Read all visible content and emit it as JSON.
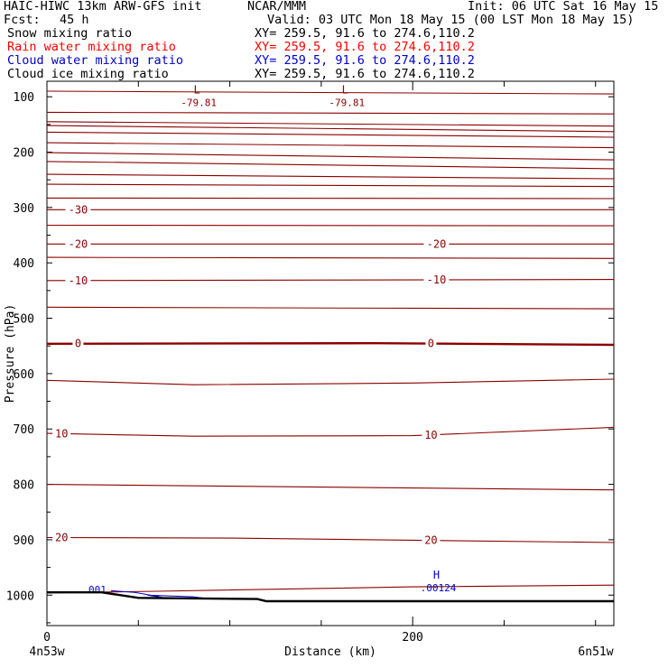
{
  "header": {
    "title": "HAIC-HIWC 13km ARW-GFS init",
    "org": "NCAR/MMM",
    "init": "Init: 06 UTC Sat 16 May 15",
    "fcst_label": "Fcst:",
    "fcst_value": "45 h",
    "valid": "Valid: 03 UTC Mon 18 May 15 (00 LST Mon 18 May 15)",
    "fields": [
      {
        "name": "Snow mixing ratio",
        "xy": "XY= 259.5, 91.6 to 274.6,110.2",
        "color": "#000000"
      },
      {
        "name": "Rain water mixing ratio",
        "xy": "XY= 259.5, 91.6 to 274.6,110.2",
        "color": "#ff0000"
      },
      {
        "name": "Cloud water mixing ratio",
        "xy": "XY= 259.5, 91.6 to 274.6,110.2",
        "color": "#0000cc"
      },
      {
        "name": "Cloud ice mixing ratio",
        "xy": "XY= 259.5, 91.6 to 274.6,110.2",
        "color": "#000000"
      }
    ]
  },
  "chart_data": {
    "type": "line",
    "xlabel": "Distance (km)",
    "ylabel": "Pressure (hPa)",
    "xlim": [
      0,
      310
    ],
    "ylim": [
      1055,
      72
    ],
    "x_ticks": [
      0,
      200
    ],
    "y_ticks": [
      100,
      200,
      300,
      400,
      500,
      600,
      700,
      800,
      900,
      1000
    ],
    "x_endpoint_labels": [
      "4n53w",
      "6n51w"
    ],
    "colors": {
      "temperature": "#8b0000",
      "cloud_water": "#0000cc",
      "terrain": "#000000"
    },
    "temperature_lines": [
      {
        "label": "0",
        "bold": true,
        "points": [
          [
            0,
            546
          ],
          [
            180,
            545
          ],
          [
            310,
            548
          ]
        ],
        "label_x": [
          17,
          210
        ]
      },
      {
        "label": "-10",
        "points": [
          [
            0,
            432
          ],
          [
            160,
            431
          ],
          [
            310,
            430
          ]
        ],
        "label_x": [
          17,
          213
        ]
      },
      {
        "label": "-20",
        "points": [
          [
            0,
            366
          ],
          [
            310,
            366
          ]
        ],
        "label_x": [
          17,
          213
        ]
      },
      {
        "label": "-30",
        "points": [
          [
            0,
            304
          ],
          [
            310,
            304
          ]
        ],
        "label_x": [
          17
        ]
      },
      {
        "label": "10",
        "points": [
          [
            0,
            708
          ],
          [
            80,
            713
          ],
          [
            200,
            712
          ],
          [
            310,
            697
          ]
        ],
        "label_x": [
          8,
          210
        ]
      },
      {
        "label": "20",
        "points": [
          [
            0,
            896
          ],
          [
            100,
            897
          ],
          [
            310,
            905
          ]
        ],
        "label_x": [
          8,
          210
        ]
      },
      {
        "label": "",
        "points": [
          [
            0,
            612
          ],
          [
            80,
            620
          ],
          [
            200,
            617
          ],
          [
            310,
            610
          ]
        ]
      },
      {
        "label": "",
        "points": [
          [
            0,
            480
          ],
          [
            310,
            483
          ]
        ]
      },
      {
        "label": "",
        "points": [
          [
            0,
            390
          ],
          [
            310,
            392
          ]
        ]
      },
      {
        "label": "",
        "points": [
          [
            0,
            332
          ],
          [
            310,
            333
          ]
        ]
      },
      {
        "label": "",
        "points": [
          [
            0,
            283
          ],
          [
            310,
            284
          ]
        ]
      },
      {
        "label": "",
        "points": [
          [
            0,
            258
          ],
          [
            310,
            262
          ]
        ]
      },
      {
        "label": "",
        "points": [
          [
            0,
            240
          ],
          [
            310,
            248
          ]
        ]
      },
      {
        "label": "",
        "points": [
          [
            0,
            217
          ],
          [
            310,
            230
          ]
        ]
      },
      {
        "label": "",
        "points": [
          [
            0,
            201
          ],
          [
            310,
            214
          ]
        ]
      },
      {
        "label": "",
        "points": [
          [
            0,
            183
          ],
          [
            310,
            192
          ]
        ]
      },
      {
        "label": "",
        "points": [
          [
            0,
            164
          ],
          [
            310,
            173
          ]
        ]
      },
      {
        "label": "",
        "points": [
          [
            0,
            152
          ],
          [
            310,
            163
          ]
        ]
      },
      {
        "label": "",
        "points": [
          [
            0,
            145
          ],
          [
            310,
            153
          ]
        ]
      },
      {
        "label": "",
        "points": [
          [
            0,
            128
          ],
          [
            310,
            131
          ]
        ]
      },
      {
        "label": "",
        "points": [
          [
            0,
            90
          ],
          [
            310,
            95
          ]
        ]
      },
      {
        "label": "",
        "points": [
          [
            0,
            800
          ],
          [
            310,
            810
          ]
        ]
      },
      {
        "label": "",
        "points": [
          [
            0,
            996
          ],
          [
            60,
            993
          ],
          [
            200,
            985
          ],
          [
            310,
            982
          ]
        ]
      }
    ],
    "annotations": [
      {
        "marker": "L",
        "value": "-79.81",
        "x": 82,
        "p": 104,
        "color": "#8b0000"
      },
      {
        "marker": "L",
        "value": "-79.81",
        "x": 163,
        "p": 104,
        "color": "#8b0000"
      },
      {
        "marker": "H",
        "value": ".00124",
        "x": 213,
        "p": 980,
        "color": "#0000cc"
      }
    ],
    "cloud_water": {
      "label": ".001",
      "label_x": 26,
      "label_p": 990,
      "points": [
        [
          35,
          992
        ],
        [
          48,
          995
        ],
        [
          60,
          1002
        ],
        [
          64,
          1005
        ],
        [
          55,
          1000
        ],
        [
          80,
          1003
        ],
        [
          90,
          1007
        ]
      ]
    },
    "terrain": [
      [
        0,
        995
      ],
      [
        30,
        995
      ],
      [
        50,
        1005
      ],
      [
        115,
        1007
      ],
      [
        120,
        1011
      ],
      [
        310,
        1011
      ]
    ]
  }
}
